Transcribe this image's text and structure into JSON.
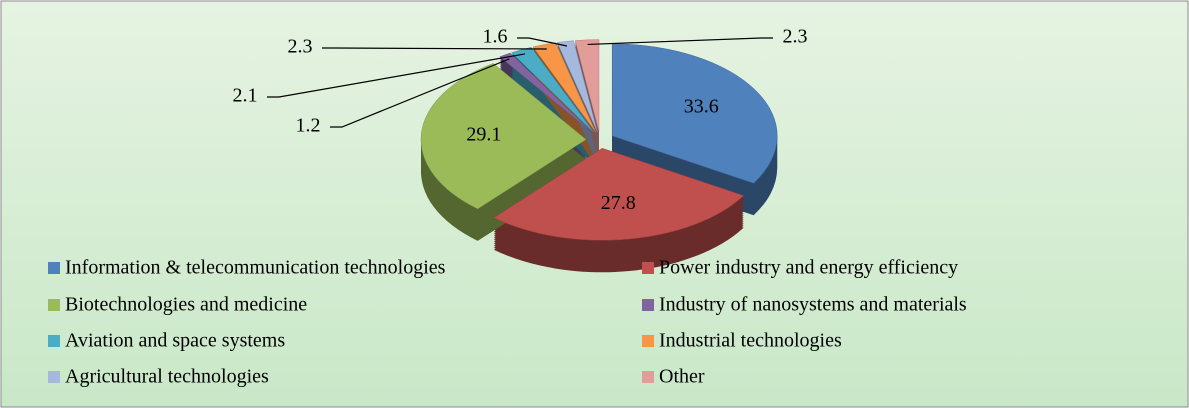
{
  "chart_data": {
    "type": "pie",
    "categories": [
      "Information & telecommunication technologies",
      "Power industry and energy efficiency",
      "Biotechnologies and medicine",
      "Industry of nanosystems and materials",
      "Aviation and space systems",
      "Industrial technologies",
      "Agricultural technologies",
      "Other"
    ],
    "values": [
      33.6,
      27.8,
      29.1,
      1.2,
      2.1,
      2.3,
      1.6,
      2.3
    ],
    "colors": [
      "#4f81bd",
      "#c0504d",
      "#9bbb59",
      "#8064a2",
      "#4bacc6",
      "#f79646",
      "#a5b9de",
      "#e29c9a"
    ],
    "legend": "bottom"
  }
}
